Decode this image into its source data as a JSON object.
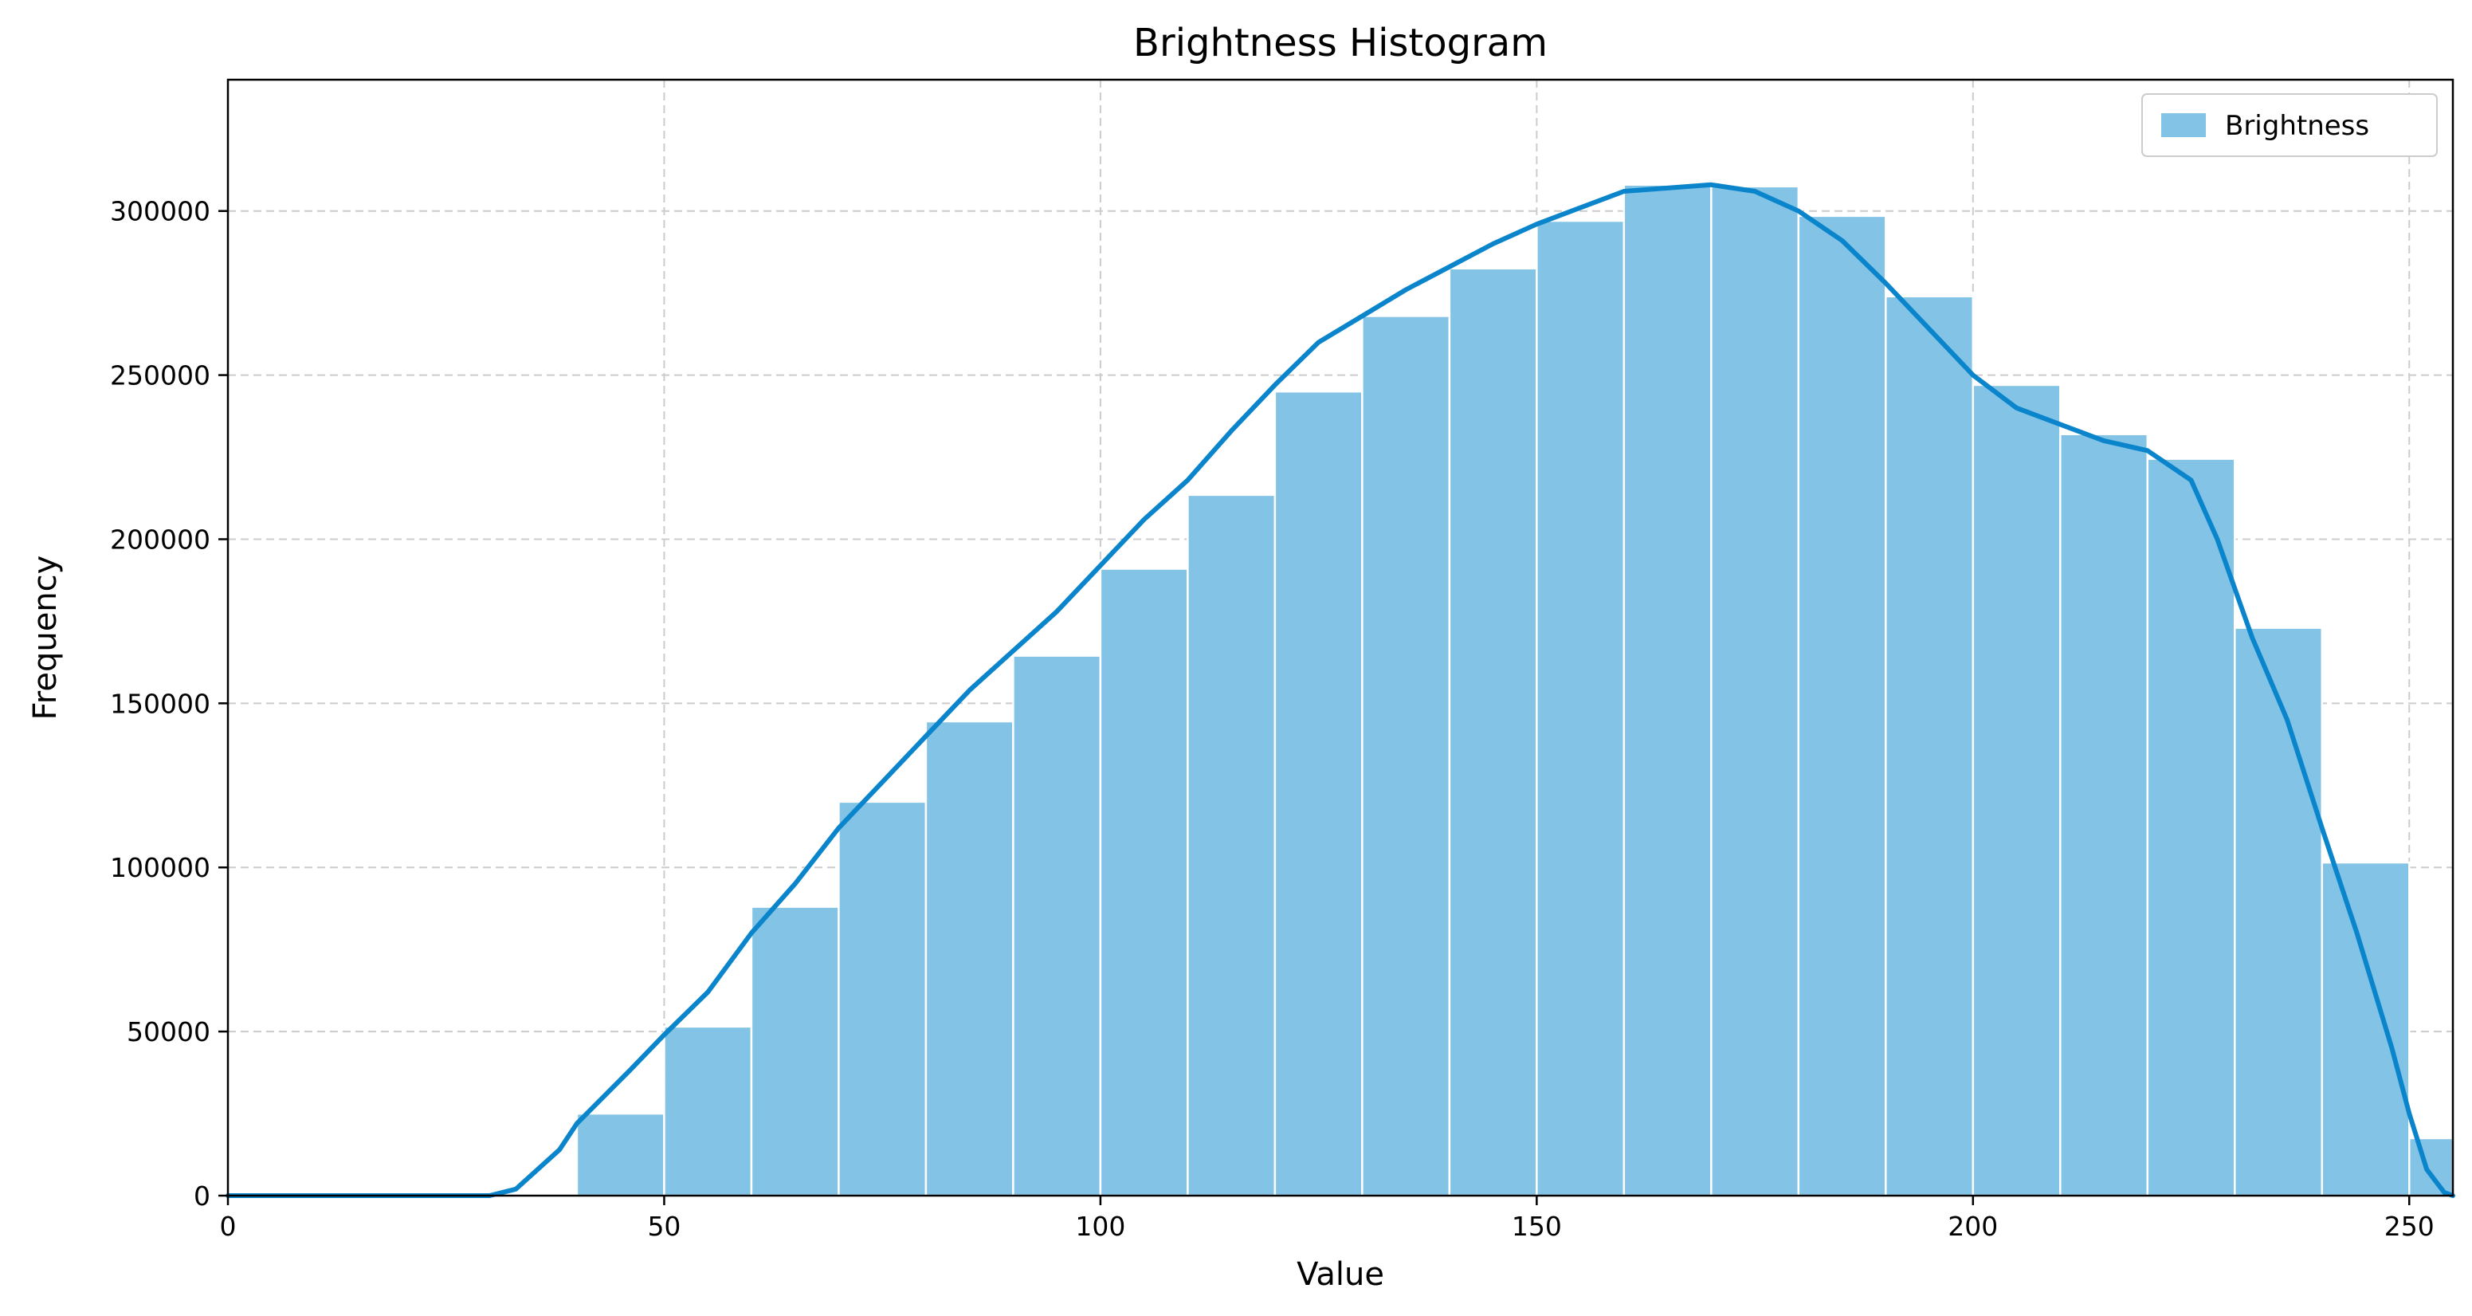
{
  "chart_data": {
    "type": "bar",
    "title": "Brightness Histogram",
    "xlabel": "Value",
    "ylabel": "Frequency",
    "xlim": [
      0,
      255
    ],
    "ylim": [
      0,
      340000
    ],
    "xticks": [
      0,
      50,
      100,
      150,
      200,
      250
    ],
    "yticks": [
      0,
      50000,
      100000,
      150000,
      200000,
      250000,
      300000
    ],
    "grid": true,
    "legend": {
      "placement": "top-right",
      "entries": [
        "Brightness"
      ]
    },
    "colors": {
      "bar": "#82c3e6",
      "bar_edge": "#ffffff",
      "line": "#0a85cc",
      "grid": "#cccccc"
    },
    "bins": [
      {
        "x0": 40,
        "x1": 50,
        "value": 25000
      },
      {
        "x0": 50,
        "x1": 60,
        "value": 51500
      },
      {
        "x0": 60,
        "x1": 70,
        "value": 88000
      },
      {
        "x0": 70,
        "x1": 80,
        "value": 120000
      },
      {
        "x0": 80,
        "x1": 90,
        "value": 144500
      },
      {
        "x0": 90,
        "x1": 100,
        "value": 164500
      },
      {
        "x0": 100,
        "x1": 110,
        "value": 191000
      },
      {
        "x0": 110,
        "x1": 120,
        "value": 213500
      },
      {
        "x0": 120,
        "x1": 130,
        "value": 245000
      },
      {
        "x0": 130,
        "x1": 140,
        "value": 268000
      },
      {
        "x0": 140,
        "x1": 150,
        "value": 282500
      },
      {
        "x0": 150,
        "x1": 160,
        "value": 297000
      },
      {
        "x0": 160,
        "x1": 170,
        "value": 308000
      },
      {
        "x0": 170,
        "x1": 180,
        "value": 307500
      },
      {
        "x0": 180,
        "x1": 190,
        "value": 298500
      },
      {
        "x0": 190,
        "x1": 200,
        "value": 274000
      },
      {
        "x0": 200,
        "x1": 210,
        "value": 247000
      },
      {
        "x0": 210,
        "x1": 220,
        "value": 232000
      },
      {
        "x0": 220,
        "x1": 230,
        "value": 224500
      },
      {
        "x0": 230,
        "x1": 240,
        "value": 173000
      },
      {
        "x0": 240,
        "x1": 250,
        "value": 101500
      },
      {
        "x0": 250,
        "x1": 255,
        "value": 17500
      }
    ],
    "curve": [
      [
        0,
        0
      ],
      [
        30,
        0
      ],
      [
        33,
        2000
      ],
      [
        38,
        14000
      ],
      [
        40,
        22000
      ],
      [
        43,
        30000
      ],
      [
        46,
        38000
      ],
      [
        50,
        49000
      ],
      [
        55,
        62000
      ],
      [
        60,
        80000
      ],
      [
        65,
        95000
      ],
      [
        70,
        112000
      ],
      [
        75,
        126000
      ],
      [
        80,
        140000
      ],
      [
        85,
        154000
      ],
      [
        90,
        166000
      ],
      [
        95,
        178000
      ],
      [
        100,
        192000
      ],
      [
        105,
        206000
      ],
      [
        110,
        218000
      ],
      [
        115,
        233000
      ],
      [
        120,
        247000
      ],
      [
        125,
        260000
      ],
      [
        130,
        268000
      ],
      [
        135,
        276000
      ],
      [
        140,
        283000
      ],
      [
        145,
        290000
      ],
      [
        150,
        296000
      ],
      [
        155,
        301000
      ],
      [
        160,
        306000
      ],
      [
        165,
        307000
      ],
      [
        170,
        308000
      ],
      [
        175,
        306000
      ],
      [
        180,
        300000
      ],
      [
        185,
        291000
      ],
      [
        190,
        278000
      ],
      [
        195,
        264000
      ],
      [
        200,
        250000
      ],
      [
        205,
        240000
      ],
      [
        210,
        235000
      ],
      [
        215,
        230000
      ],
      [
        220,
        227000
      ],
      [
        225,
        218000
      ],
      [
        228,
        200000
      ],
      [
        232,
        170000
      ],
      [
        236,
        145000
      ],
      [
        240,
        112000
      ],
      [
        244,
        80000
      ],
      [
        248,
        45000
      ],
      [
        250,
        25000
      ],
      [
        252,
        8000
      ],
      [
        254,
        1000
      ],
      [
        255,
        0
      ]
    ]
  }
}
